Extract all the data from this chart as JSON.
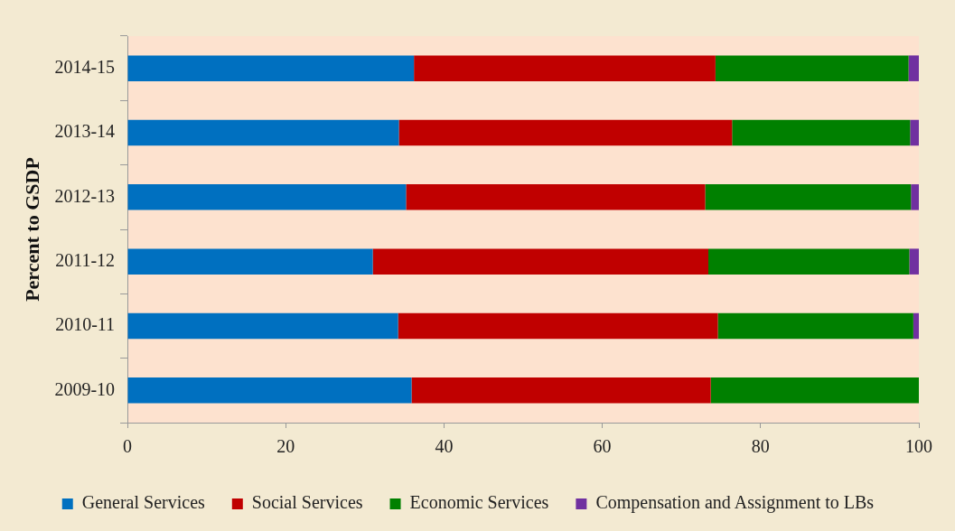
{
  "chart_data": {
    "type": "bar",
    "orientation": "horizontal",
    "stacked": true,
    "ylabel": "Percent to GSDP",
    "categories": [
      "2014-15",
      "2013-14",
      "2012-13",
      "2011-12",
      "2010-11",
      "2009-10"
    ],
    "series": [
      {
        "name": "General Services",
        "color": "#0070c0",
        "values": [
          36.2,
          34.3,
          35.2,
          31.0,
          34.2,
          35.9
        ]
      },
      {
        "name": "Social Services",
        "color": "#c00000",
        "values": [
          38.1,
          42.1,
          37.8,
          42.4,
          40.4,
          37.8
        ]
      },
      {
        "name": "Economic Services",
        "color": "#008000",
        "values": [
          24.4,
          22.5,
          26.0,
          25.4,
          24.7,
          26.3
        ]
      },
      {
        "name": "Compensation and Assignment to LBs",
        "color": "#7030a0",
        "values": [
          1.3,
          1.1,
          1.0,
          1.2,
          0.7,
          0
        ]
      }
    ],
    "xlim": [
      0,
      100
    ],
    "xticks": [
      0,
      20,
      40,
      60,
      80,
      100
    ],
    "grid": false,
    "legend": "bottom"
  }
}
